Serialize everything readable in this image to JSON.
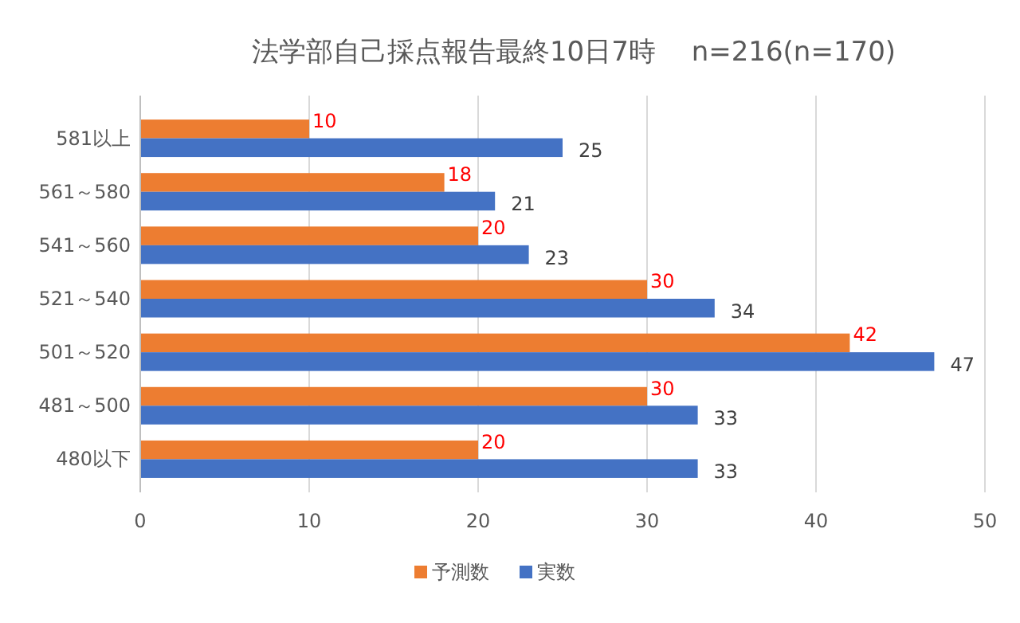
{
  "chart_data": {
    "type": "bar",
    "orientation": "horizontal",
    "title": "法学部自己採点報告最終10日7時　 n=216(n=170)",
    "categories": [
      "581以上",
      "561～580",
      "541～560",
      "521～540",
      "501～520",
      "481～500",
      "480以下"
    ],
    "series": [
      {
        "name": "予測数",
        "color": "#ed7d31",
        "values": [
          10,
          18,
          20,
          30,
          42,
          30,
          20
        ]
      },
      {
        "name": "実数",
        "color": "#4472c4",
        "values": [
          25,
          21,
          23,
          34,
          47,
          33,
          33
        ]
      }
    ],
    "xlim": [
      0,
      50
    ],
    "xticks": [
      0,
      10,
      20,
      30,
      40,
      50
    ],
    "grid": "x",
    "legend": "bottom",
    "data_labels": true
  }
}
